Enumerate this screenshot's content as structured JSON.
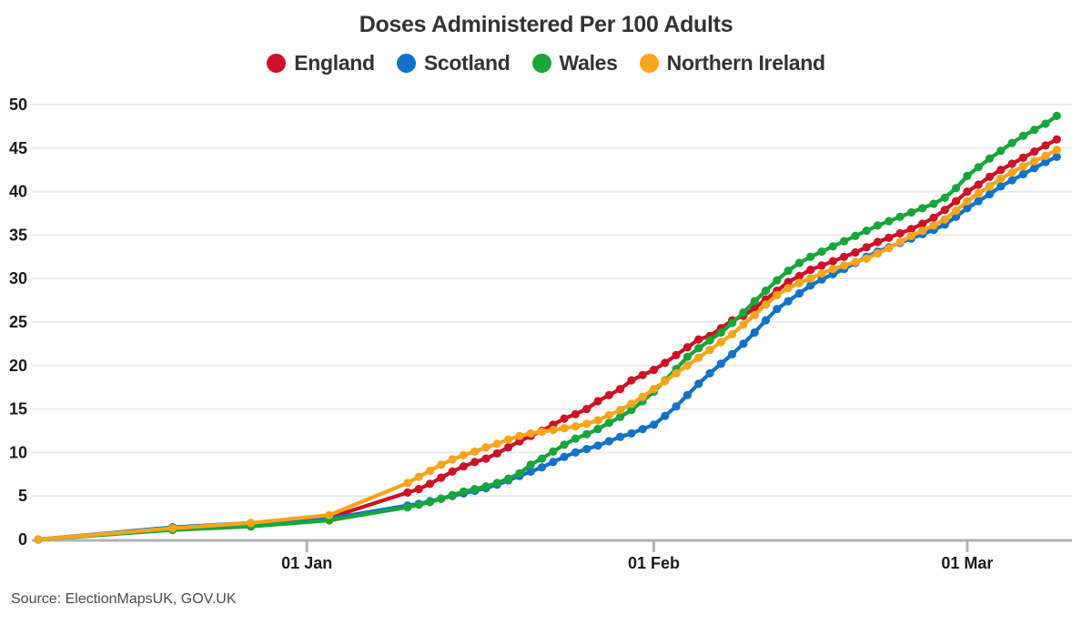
{
  "title": "Doses Administered Per 100 Adults",
  "source": "Source: ElectionMapsUK, GOV.UK",
  "axis": {
    "x_tick_labels": [
      "01 Jan",
      "01 Feb",
      "01 Mar"
    ],
    "y_tick_labels": [
      "0",
      "5",
      "10",
      "15",
      "20",
      "25",
      "30",
      "35",
      "40",
      "45",
      "50"
    ]
  },
  "chart_data": {
    "type": "line",
    "title": "Doses Administered Per 100 Adults",
    "xlabel": "",
    "ylabel": "",
    "ylim": [
      0,
      50
    ],
    "grid": true,
    "legend_position": "top",
    "x_dates": [
      "2020-12-08",
      "2020-12-20",
      "2020-12-27",
      "2021-01-03",
      "2021-01-10",
      "2021-01-11",
      "2021-01-12",
      "2021-01-13",
      "2021-01-14",
      "2021-01-15",
      "2021-01-16",
      "2021-01-17",
      "2021-01-18",
      "2021-01-19",
      "2021-01-20",
      "2021-01-21",
      "2021-01-22",
      "2021-01-23",
      "2021-01-24",
      "2021-01-25",
      "2021-01-26",
      "2021-01-27",
      "2021-01-28",
      "2021-01-29",
      "2021-01-30",
      "2021-01-31",
      "2021-02-01",
      "2021-02-02",
      "2021-02-03",
      "2021-02-04",
      "2021-02-05",
      "2021-02-06",
      "2021-02-07",
      "2021-02-08",
      "2021-02-09",
      "2021-02-10",
      "2021-02-11",
      "2021-02-12",
      "2021-02-13",
      "2021-02-14",
      "2021-02-15",
      "2021-02-16",
      "2021-02-17",
      "2021-02-18",
      "2021-02-19",
      "2021-02-20",
      "2021-02-21",
      "2021-02-22",
      "2021-02-23",
      "2021-02-24",
      "2021-02-25",
      "2021-02-26",
      "2021-02-27",
      "2021-02-28",
      "2021-03-01",
      "2021-03-02",
      "2021-03-03",
      "2021-03-04",
      "2021-03-05",
      "2021-03-06",
      "2021-03-07",
      "2021-03-08",
      "2021-03-09"
    ],
    "x_ticks": [
      {
        "label": "01 Jan",
        "date": "2021-01-01"
      },
      {
        "label": "01 Feb",
        "date": "2021-02-01"
      },
      {
        "label": "01 Mar",
        "date": "2021-03-01"
      }
    ],
    "y_ticks": [
      0,
      5,
      10,
      15,
      20,
      25,
      30,
      35,
      40,
      45,
      50
    ],
    "series": [
      {
        "name": "England",
        "color": "#cd1126",
        "values": [
          0.0,
          1.3,
          1.8,
          2.5,
          5.4,
          5.8,
          6.4,
          7.1,
          7.8,
          8.4,
          8.9,
          9.3,
          9.9,
          10.6,
          11.3,
          11.9,
          12.5,
          13.2,
          13.9,
          14.4,
          15.0,
          15.9,
          16.6,
          17.3,
          18.3,
          18.9,
          19.5,
          20.3,
          21.2,
          22.1,
          23.0,
          23.4,
          24.3,
          25.2,
          25.7,
          26.6,
          27.6,
          28.6,
          29.6,
          30.3,
          31.0,
          31.5,
          32.0,
          32.5,
          33.0,
          33.6,
          34.2,
          34.7,
          35.2,
          35.7,
          36.3,
          37.0,
          37.9,
          38.9,
          40.0,
          40.8,
          41.7,
          42.5,
          43.2,
          43.9,
          44.6,
          45.3,
          46.0
        ]
      },
      {
        "name": "Scotland",
        "color": "#1272c8",
        "values": [
          0.0,
          1.4,
          1.9,
          2.4,
          3.9,
          4.1,
          4.4,
          4.7,
          5.0,
          5.3,
          5.6,
          5.9,
          6.3,
          6.8,
          7.3,
          7.8,
          8.3,
          8.9,
          9.5,
          10.0,
          10.4,
          10.8,
          11.3,
          11.8,
          12.2,
          12.7,
          13.2,
          14.2,
          15.3,
          16.6,
          17.9,
          19.1,
          20.2,
          21.3,
          22.5,
          23.8,
          25.2,
          26.5,
          27.4,
          28.3,
          29.2,
          29.9,
          30.5,
          31.1,
          31.8,
          32.5,
          33.1,
          33.6,
          34.1,
          34.6,
          35.1,
          35.6,
          36.2,
          37.1,
          38.1,
          38.9,
          39.7,
          40.6,
          41.3,
          42.0,
          42.7,
          43.4,
          44.0
        ]
      },
      {
        "name": "Wales",
        "color": "#17a63a",
        "values": [
          0.0,
          1.1,
          1.5,
          2.2,
          3.7,
          4.0,
          4.3,
          4.7,
          5.1,
          5.5,
          5.8,
          6.1,
          6.5,
          7.0,
          7.6,
          8.6,
          9.3,
          10.1,
          10.9,
          11.6,
          12.1,
          12.7,
          13.4,
          14.1,
          14.9,
          15.9,
          17.0,
          18.3,
          19.6,
          21.0,
          22.0,
          22.9,
          23.8,
          24.9,
          26.1,
          27.4,
          28.6,
          29.8,
          30.9,
          31.8,
          32.5,
          33.1,
          33.7,
          34.3,
          34.9,
          35.5,
          36.1,
          36.6,
          37.1,
          37.6,
          38.1,
          38.6,
          39.3,
          40.4,
          41.8,
          42.8,
          43.8,
          44.7,
          45.6,
          46.4,
          47.1,
          47.8,
          48.7
        ]
      },
      {
        "name": "Northern Ireland",
        "color": "#f7a51b",
        "values": [
          0.0,
          1.3,
          1.9,
          2.8,
          6.5,
          7.2,
          7.9,
          8.6,
          9.2,
          9.7,
          10.1,
          10.6,
          11.0,
          11.5,
          11.9,
          12.2,
          12.4,
          12.6,
          12.8,
          13.0,
          13.3,
          13.7,
          14.3,
          14.9,
          15.6,
          16.4,
          17.3,
          18.2,
          19.1,
          20.0,
          20.9,
          21.8,
          22.7,
          23.6,
          24.7,
          25.8,
          27.0,
          28.1,
          28.9,
          29.5,
          30.0,
          30.6,
          31.1,
          31.5,
          31.9,
          32.3,
          32.9,
          33.5,
          34.2,
          34.9,
          35.5,
          36.1,
          36.8,
          37.8,
          38.9,
          39.8,
          40.6,
          41.5,
          42.2,
          42.9,
          43.5,
          44.1,
          44.8
        ]
      }
    ]
  }
}
